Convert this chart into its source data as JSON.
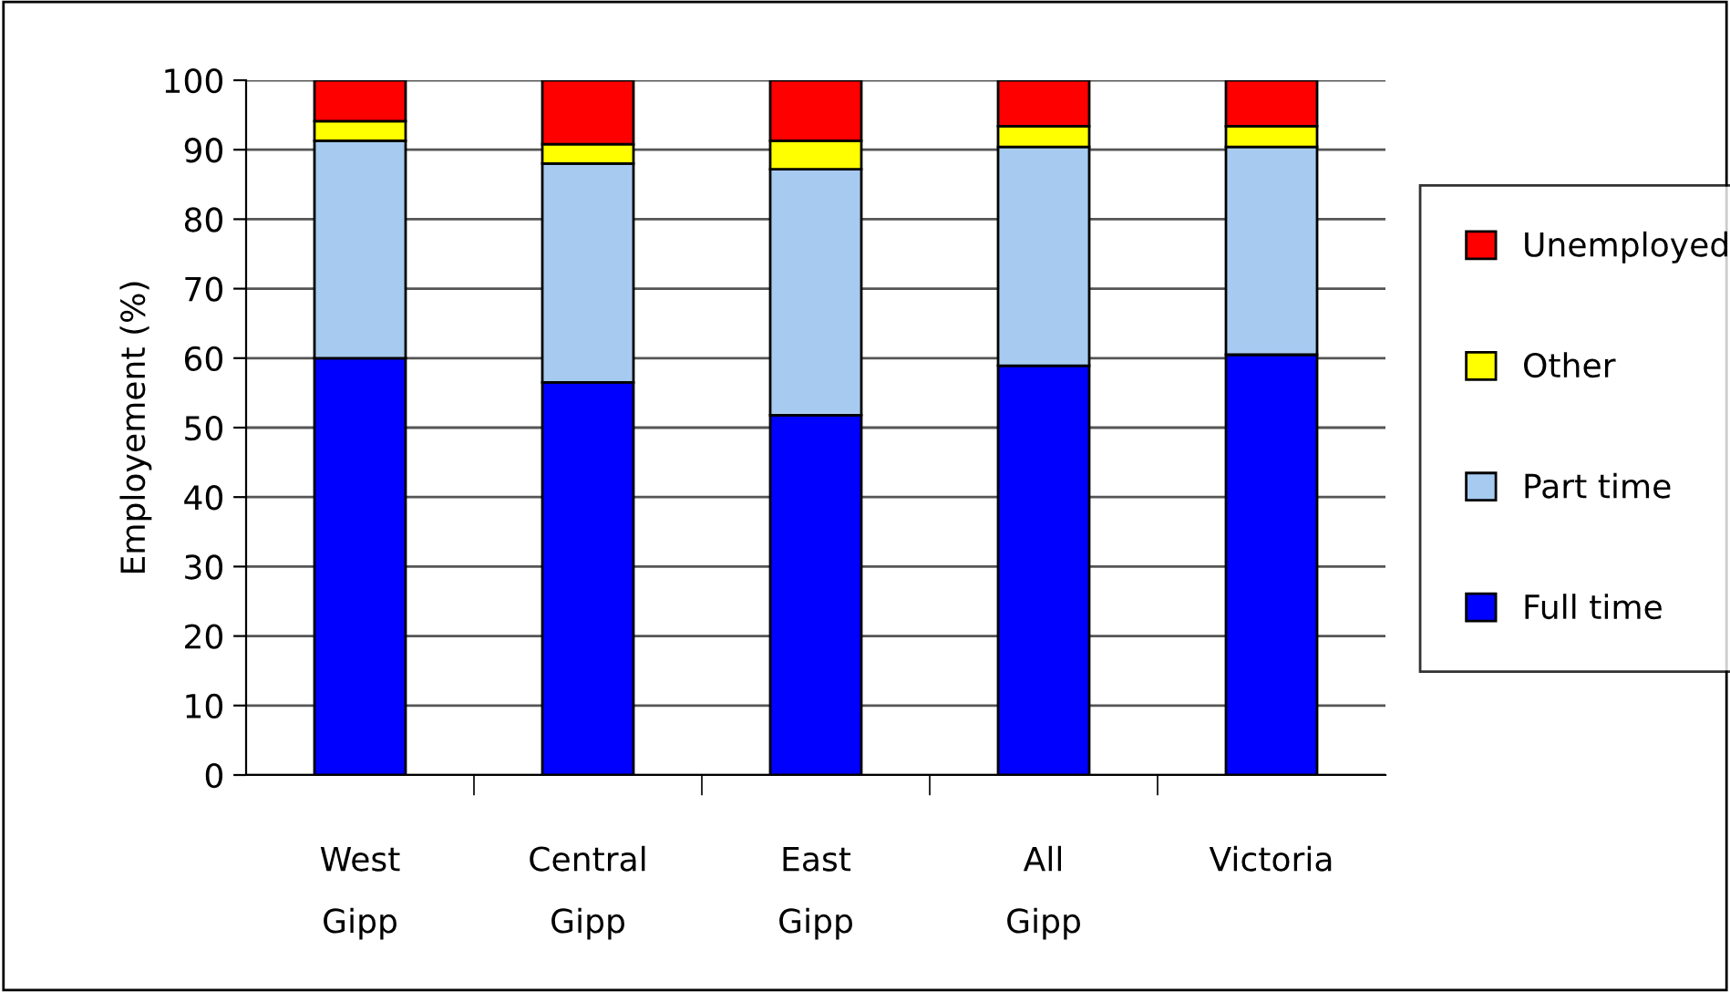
{
  "chart_data": {
    "type": "bar",
    "stacked": true,
    "ylabel": "Employement (%)",
    "categories": [
      "West\nGipp",
      "Central\nGipp",
      "East\nGipp",
      "All\nGipp",
      "Victoria"
    ],
    "series": [
      {
        "name": "Full time",
        "color": "#0000ff",
        "values": [
          60,
          56.5,
          51.8,
          58.9,
          60.5
        ]
      },
      {
        "name": "Part time",
        "color": "#a6caf0",
        "values": [
          31.3,
          31.5,
          35.4,
          31.5,
          29.9
        ]
      },
      {
        "name": "Other",
        "color": "#ffff00",
        "values": [
          2.8,
          2.8,
          4.1,
          3.0,
          3.0
        ]
      },
      {
        "name": "Unemployed",
        "color": "#ff0000",
        "values": [
          5.9,
          9.2,
          8.7,
          6.6,
          6.6
        ]
      }
    ],
    "ylim": [
      0,
      100
    ],
    "yticks": [
      0,
      10,
      20,
      30,
      40,
      50,
      60,
      70,
      80,
      90,
      100
    ],
    "grid": "y",
    "legend": "right"
  }
}
